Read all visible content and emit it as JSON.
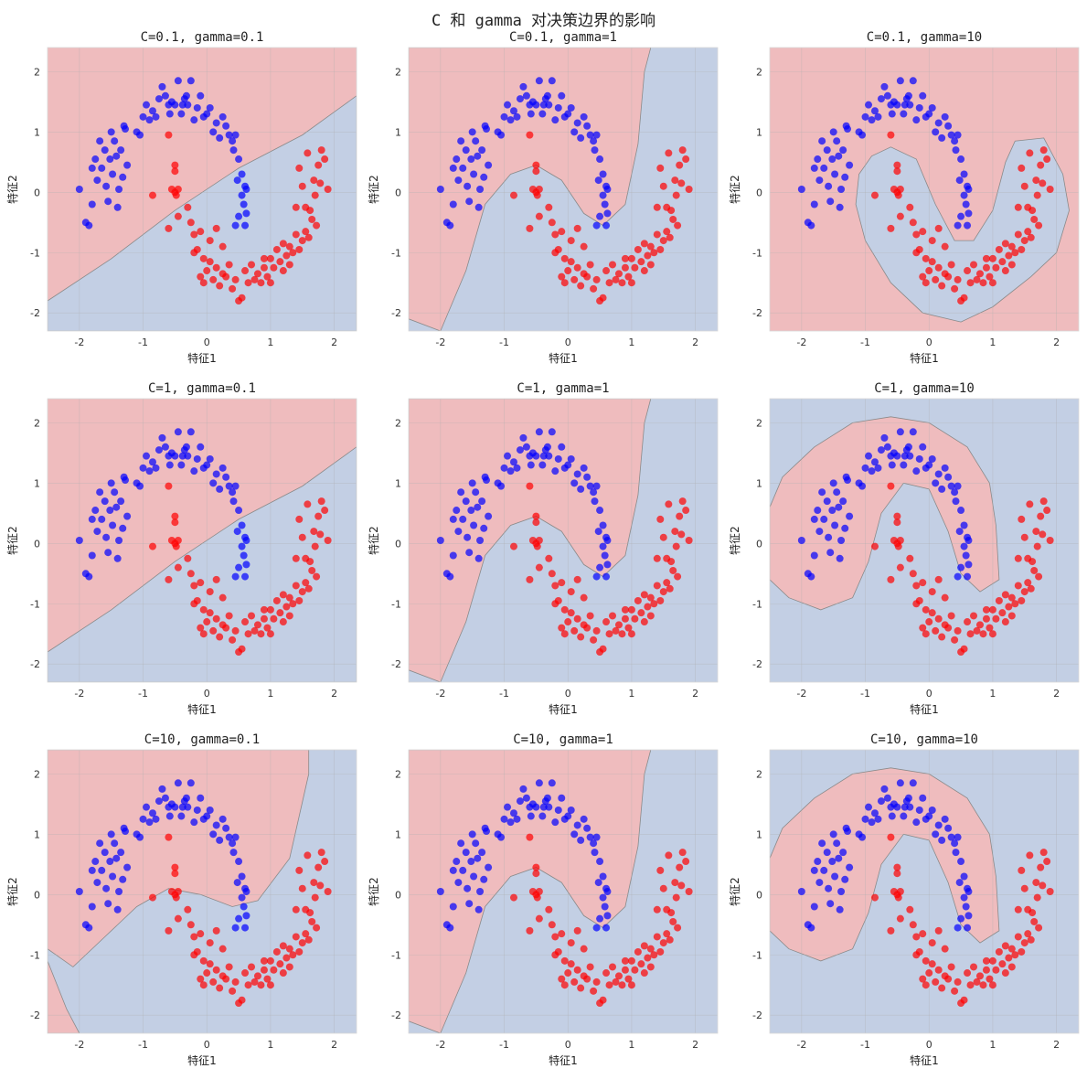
{
  "figure": {
    "suptitle": "C 和 gamma 对决策边界的影响",
    "colors": {
      "class0_region": "#efbcbe",
      "class1_region": "#c3cfe4",
      "class0_points": "#0000ff",
      "class1_points": "#ff0000",
      "boundary": "#8a8a8a",
      "grid": "#b0b0b0"
    }
  },
  "chart_data": [
    {
      "type": "scatter",
      "title": "C=0.1, gamma=0.1",
      "xlabel": "特征1",
      "ylabel": "特征2",
      "xlim": [
        -2.5,
        2.35
      ],
      "ylim": [
        -2.3,
        2.4
      ],
      "xticks": [
        -2,
        -1,
        0,
        1,
        2
      ],
      "yticks": [
        -2,
        -1,
        0,
        1,
        2
      ],
      "grid": true,
      "boundary": "linear"
    },
    {
      "type": "scatter",
      "title": "C=0.1, gamma=1",
      "xlabel": "特征1",
      "ylabel": "特征2",
      "xlim": [
        -2.5,
        2.35
      ],
      "ylim": [
        -2.3,
        2.4
      ],
      "xticks": [
        -2,
        -1,
        0,
        1,
        2
      ],
      "yticks": [
        -2,
        -1,
        0,
        1,
        2
      ],
      "grid": true,
      "boundary": "smooth"
    },
    {
      "type": "scatter",
      "title": "C=0.1, gamma=10",
      "xlabel": "特征1",
      "ylabel": "特征2",
      "xlim": [
        -2.5,
        2.35
      ],
      "ylim": [
        -2.3,
        2.4
      ],
      "xticks": [
        -2,
        -1,
        0,
        1,
        2
      ],
      "yticks": [
        -2,
        -1,
        0,
        1,
        2
      ],
      "grid": true,
      "boundary": "tight-red"
    },
    {
      "type": "scatter",
      "title": "C=1, gamma=0.1",
      "xlabel": "特征1",
      "ylabel": "特征2",
      "xlim": [
        -2.5,
        2.35
      ],
      "ylim": [
        -2.3,
        2.4
      ],
      "xticks": [
        -2,
        -1,
        0,
        1,
        2
      ],
      "yticks": [
        -2,
        -1,
        0,
        1,
        2
      ],
      "grid": true,
      "boundary": "linear"
    },
    {
      "type": "scatter",
      "title": "C=1, gamma=1",
      "xlabel": "特征1",
      "ylabel": "特征2",
      "xlim": [
        -2.5,
        2.35
      ],
      "ylim": [
        -2.3,
        2.4
      ],
      "xticks": [
        -2,
        -1,
        0,
        1,
        2
      ],
      "yticks": [
        -2,
        -1,
        0,
        1,
        2
      ],
      "grid": true,
      "boundary": "smooth"
    },
    {
      "type": "scatter",
      "title": "C=1, gamma=10",
      "xlabel": "特征1",
      "ylabel": "特征2",
      "xlim": [
        -2.5,
        2.35
      ],
      "ylim": [
        -2.3,
        2.4
      ],
      "xticks": [
        -2,
        -1,
        0,
        1,
        2
      ],
      "yticks": [
        -2,
        -1,
        0,
        1,
        2
      ],
      "grid": true,
      "boundary": "tight-blue"
    },
    {
      "type": "scatter",
      "title": "C=10, gamma=0.1",
      "xlabel": "特征1",
      "ylabel": "特征2",
      "xlim": [
        -2.5,
        2.35
      ],
      "ylim": [
        -2.3,
        2.4
      ],
      "xticks": [
        -2,
        -1,
        0,
        1,
        2
      ],
      "yticks": [
        -2,
        -1,
        0,
        1,
        2
      ],
      "grid": true,
      "boundary": "curved"
    },
    {
      "type": "scatter",
      "title": "C=10, gamma=1",
      "xlabel": "特征1",
      "ylabel": "特征2",
      "xlim": [
        -2.5,
        2.35
      ],
      "ylim": [
        -2.3,
        2.4
      ],
      "xticks": [
        -2,
        -1,
        0,
        1,
        2
      ],
      "yticks": [
        -2,
        -1,
        0,
        1,
        2
      ],
      "grid": true,
      "boundary": "smooth"
    },
    {
      "type": "scatter",
      "title": "C=10, gamma=10",
      "xlabel": "特征1",
      "ylabel": "特征2",
      "xlim": [
        -2.5,
        2.35
      ],
      "ylim": [
        -2.3,
        2.4
      ],
      "xticks": [
        -2,
        -1,
        0,
        1,
        2
      ],
      "yticks": [
        -2,
        -1,
        0,
        1,
        2
      ],
      "grid": true,
      "boundary": "tight-blue"
    }
  ],
  "points": {
    "class0": [
      [
        -2.0,
        0.05
      ],
      [
        -1.9,
        -0.5
      ],
      [
        -1.85,
        -0.55
      ],
      [
        -1.8,
        -0.2
      ],
      [
        -1.8,
        0.4
      ],
      [
        -1.75,
        0.55
      ],
      [
        -1.72,
        0.2
      ],
      [
        -1.68,
        0.85
      ],
      [
        -1.65,
        0.4
      ],
      [
        -1.6,
        0.7
      ],
      [
        -1.58,
        0.1
      ],
      [
        -1.55,
        -0.15
      ],
      [
        -1.52,
        0.55
      ],
      [
        -1.5,
        1.0
      ],
      [
        -1.48,
        0.3
      ],
      [
        -1.45,
        0.85
      ],
      [
        -1.42,
        0.6
      ],
      [
        -1.4,
        -0.25
      ],
      [
        -1.38,
        0.05
      ],
      [
        -1.35,
        0.7
      ],
      [
        -1.32,
        0.25
      ],
      [
        -1.3,
        1.1
      ],
      [
        -1.28,
        1.05
      ],
      [
        -1.25,
        0.45
      ],
      [
        -1.1,
        1.0
      ],
      [
        -1.05,
        0.95
      ],
      [
        -1.0,
        1.25
      ],
      [
        -0.95,
        1.45
      ],
      [
        -0.9,
        1.2
      ],
      [
        -0.85,
        1.35
      ],
      [
        -0.8,
        1.25
      ],
      [
        -0.75,
        1.55
      ],
      [
        -0.7,
        1.75
      ],
      [
        -0.65,
        1.6
      ],
      [
        -0.6,
        1.45
      ],
      [
        -0.58,
        1.3
      ],
      [
        -0.55,
        1.5
      ],
      [
        -0.5,
        1.45
      ],
      [
        -0.45,
        1.85
      ],
      [
        -0.4,
        1.3
      ],
      [
        -0.38,
        1.45
      ],
      [
        -0.35,
        1.55
      ],
      [
        -0.32,
        1.6
      ],
      [
        -0.3,
        1.45
      ],
      [
        -0.25,
        1.85
      ],
      [
        -0.2,
        1.2
      ],
      [
        -0.15,
        1.4
      ],
      [
        -0.1,
        1.6
      ],
      [
        -0.05,
        1.25
      ],
      [
        0.0,
        1.3
      ],
      [
        0.05,
        1.4
      ],
      [
        0.1,
        1.0
      ],
      [
        0.15,
        1.15
      ],
      [
        0.2,
        0.9
      ],
      [
        0.25,
        1.25
      ],
      [
        0.3,
        1.1
      ],
      [
        0.35,
        0.95
      ],
      [
        0.4,
        0.85
      ],
      [
        0.42,
        0.7
      ],
      [
        0.45,
        0.95
      ],
      [
        0.5,
        0.55
      ],
      [
        0.55,
        0.3
      ],
      [
        0.58,
        -0.2
      ],
      [
        0.6,
        0.1
      ],
      [
        0.62,
        -0.35
      ],
      [
        0.55,
        -0.05
      ],
      [
        0.5,
        -0.4
      ],
      [
        0.45,
        -0.55
      ],
      [
        0.48,
        0.2
      ],
      [
        0.6,
        -0.55
      ],
      [
        0.62,
        0.05
      ]
    ],
    "class1": [
      [
        -0.6,
        0.95
      ],
      [
        -0.85,
        -0.05
      ],
      [
        -0.5,
        0.45
      ],
      [
        -0.5,
        0.35
      ],
      [
        -0.55,
        0.05
      ],
      [
        -0.5,
        0.0
      ],
      [
        -0.45,
        0.05
      ],
      [
        -0.48,
        -0.05
      ],
      [
        -0.6,
        -0.6
      ],
      [
        -0.45,
        -0.4
      ],
      [
        -0.3,
        -0.25
      ],
      [
        -0.25,
        -0.5
      ],
      [
        -0.2,
        -0.7
      ],
      [
        -0.15,
        -0.95
      ],
      [
        -0.1,
        -0.65
      ],
      [
        -0.05,
        -1.1
      ],
      [
        0.0,
        -1.3
      ],
      [
        0.05,
        -1.15
      ],
      [
        0.1,
        -1.45
      ],
      [
        0.15,
        -1.25
      ],
      [
        0.2,
        -1.55
      ],
      [
        0.25,
        -1.35
      ],
      [
        0.3,
        -1.4
      ],
      [
        0.35,
        -1.2
      ],
      [
        0.4,
        -1.6
      ],
      [
        0.45,
        -1.45
      ],
      [
        0.5,
        -1.8
      ],
      [
        0.55,
        -1.75
      ],
      [
        0.6,
        -1.3
      ],
      [
        0.65,
        -1.5
      ],
      [
        0.7,
        -1.2
      ],
      [
        0.75,
        -1.45
      ],
      [
        0.8,
        -1.35
      ],
      [
        0.85,
        -1.5
      ],
      [
        0.9,
        -1.25
      ],
      [
        0.95,
        -1.4
      ],
      [
        1.0,
        -1.1
      ],
      [
        1.05,
        -1.25
      ],
      [
        1.1,
        -0.95
      ],
      [
        1.15,
        -1.15
      ],
      [
        1.2,
        -0.85
      ],
      [
        1.25,
        -1.05
      ],
      [
        1.3,
        -0.9
      ],
      [
        1.35,
        -1.0
      ],
      [
        1.4,
        -0.7
      ],
      [
        1.45,
        -0.95
      ],
      [
        1.5,
        -0.8
      ],
      [
        1.55,
        -0.65
      ],
      [
        1.6,
        -0.75
      ],
      [
        1.65,
        -0.45
      ],
      [
        1.62,
        -0.3
      ],
      [
        1.7,
        -0.05
      ],
      [
        1.68,
        0.2
      ],
      [
        1.75,
        0.45
      ],
      [
        1.8,
        0.7
      ],
      [
        1.85,
        0.55
      ],
      [
        1.78,
        0.15
      ],
      [
        1.9,
        0.05
      ],
      [
        1.72,
        -0.55
      ],
      [
        1.55,
        -0.25
      ],
      [
        1.5,
        0.1
      ],
      [
        1.45,
        0.4
      ],
      [
        1.58,
        0.65
      ],
      [
        1.4,
        -0.25
      ],
      [
        -0.1,
        -1.4
      ],
      [
        -0.2,
        -1.0
      ],
      [
        0.05,
        -0.8
      ],
      [
        0.15,
        -0.6
      ],
      [
        0.25,
        -0.9
      ],
      [
        -0.05,
        -1.5
      ],
      [
        1.2,
        -1.3
      ],
      [
        1.3,
        -1.2
      ],
      [
        1.0,
        -1.5
      ],
      [
        0.9,
        -1.1
      ]
    ]
  }
}
